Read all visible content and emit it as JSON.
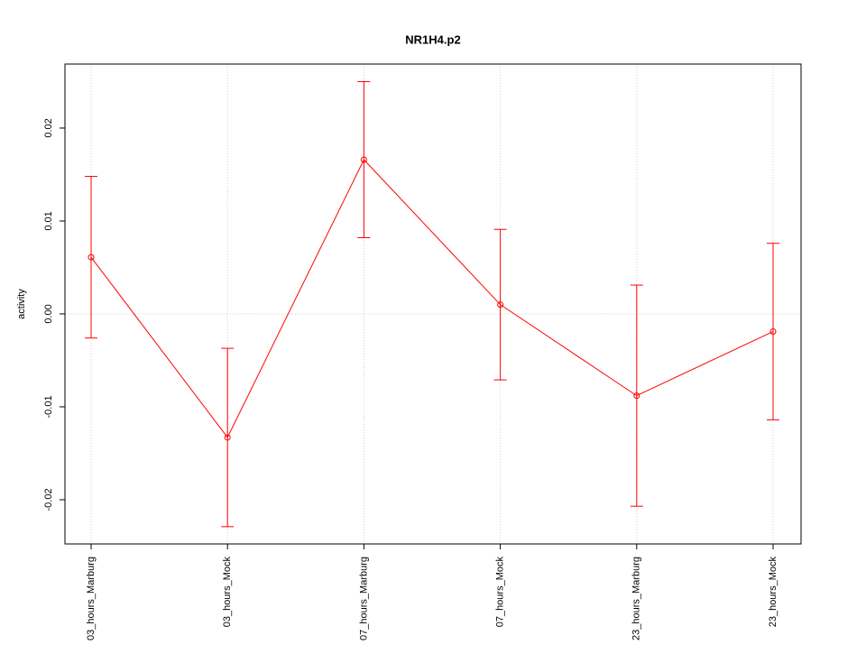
{
  "chart_data": {
    "type": "line-errorbar",
    "title": "NR1H4.p2",
    "ylabel": "activity",
    "categories": [
      "03_hours_Marburg",
      "03_hours_Mock",
      "07_hours_Marburg",
      "07_hours_Mock",
      "23_hours_Marburg",
      "23_hours_Mock"
    ],
    "values": [
      0.0061,
      -0.0133,
      0.0166,
      0.001,
      -0.0088,
      -0.0019
    ],
    "errors": [
      0.0087,
      0.0096,
      0.0084,
      0.0081,
      0.0119,
      0.0095
    ],
    "color": "#ff0000",
    "ylim": [
      -0.02476,
      0.02689
    ],
    "yticks": [
      -0.02,
      -0.01,
      {
        "value": 0,
        "label": "0.00"
      },
      0.01,
      0.02
    ],
    "grid": true,
    "reference_line": 0
  }
}
